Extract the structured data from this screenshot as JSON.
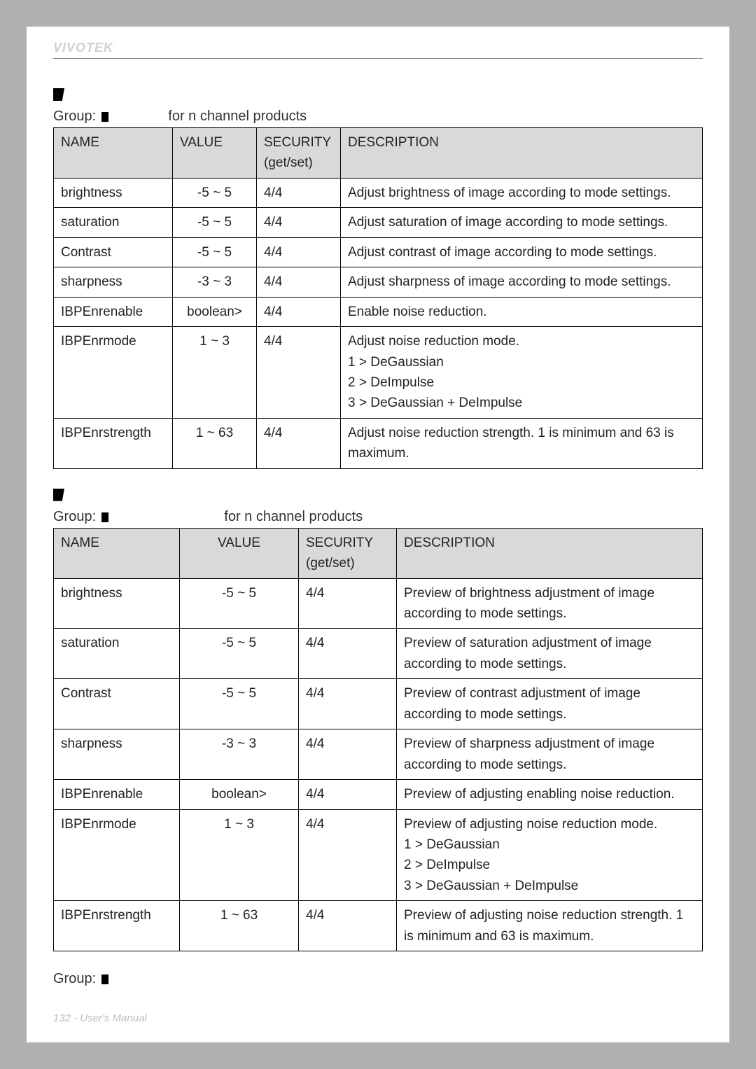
{
  "brand": "VIVOTEK",
  "footer": "132 - User's Manual",
  "section1": {
    "group_label": "Group:",
    "group_note": "for n channel products",
    "headers": {
      "name": "NAME",
      "value": "VALUE",
      "security": "SECURITY (get/set)",
      "desc": "DESCRIPTION"
    },
    "rows": [
      {
        "name": "brightness",
        "value": "-5 ~ 5",
        "sec": "4/4",
        "desc": "Adjust brightness of image according to mode settings."
      },
      {
        "name": "saturation",
        "value": "-5 ~ 5",
        "sec": "4/4",
        "desc": "Adjust saturation of image according to mode settings."
      },
      {
        "name": "Contrast",
        "value": "-5 ~ 5",
        "sec": "4/4",
        "desc": "Adjust contrast of image according to mode settings."
      },
      {
        "name": "sharpness",
        "value": "-3 ~ 3",
        "sec": "4/4",
        "desc": "Adjust sharpness of image according to mode settings."
      },
      {
        "name": "IBPEnrenable",
        "value": "boolean>",
        "sec": "4/4",
        "desc": "Enable noise reduction."
      },
      {
        "name": "IBPEnrmode",
        "value": "1 ~ 3",
        "sec": "4/4",
        "desc": "Adjust noise reduction mode.\n1 > DeGaussian\n2 > DeImpulse\n3 > DeGaussian + DeImpulse"
      },
      {
        "name": "IBPEnrstrength",
        "value": "1 ~ 63",
        "sec": "4/4",
        "desc": "Adjust noise reduction strength. 1 is minimum and 63 is maximum."
      }
    ]
  },
  "section2": {
    "group_label": "Group:",
    "group_note": "for n channel products",
    "headers": {
      "name": "NAME",
      "value": "VALUE",
      "security": "SECURITY (get/set)",
      "desc": "DESCRIPTION"
    },
    "rows": [
      {
        "name": "brightness",
        "value": "-5 ~ 5",
        "sec": "4/4",
        "desc": "Preview of brightness adjustment of image according to mode settings."
      },
      {
        "name": "saturation",
        "value": "-5 ~ 5",
        "sec": "4/4",
        "desc": "Preview of saturation adjustment of image according to mode settings."
      },
      {
        "name": "Contrast",
        "value": "-5 ~ 5",
        "sec": "4/4",
        "desc": "Preview of contrast adjustment of image according to mode settings."
      },
      {
        "name": "sharpness",
        "value": "-3 ~ 3",
        "sec": "4/4",
        "desc": "Preview of sharpness adjustment of image according to mode settings."
      },
      {
        "name": "IBPEnrenable",
        "value": "boolean>",
        "sec": "4/4",
        "desc": "Preview of adjusting enabling noise reduction."
      },
      {
        "name": "IBPEnrmode",
        "value": "1 ~ 3",
        "sec": "4/4",
        "desc": "Preview of adjusting noise reduction mode.\n1 > DeGaussian\n2 > DeImpulse\n3 > DeGaussian + DeImpulse"
      },
      {
        "name": "IBPEnrstrength",
        "value": "1 ~ 63",
        "sec": "4/4",
        "desc": "Preview of adjusting noise reduction strength. 1 is minimum and 63 is maximum."
      }
    ]
  },
  "trailing_group": "Group:"
}
